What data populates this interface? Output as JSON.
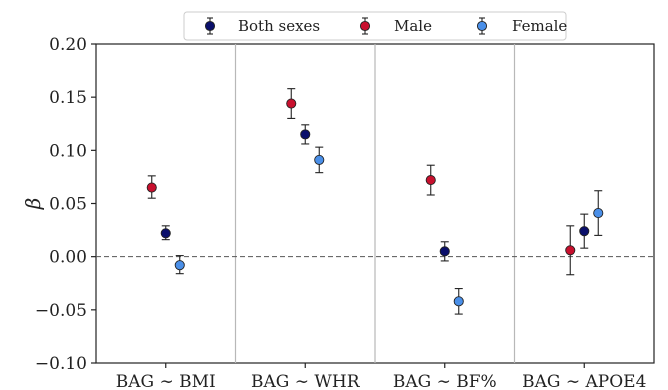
{
  "chart_data": {
    "type": "scatter",
    "title": "",
    "xlabel": "",
    "ylabel": "β",
    "categories": [
      "BAG ∼ BMI",
      "BAG ∼ WHR",
      "BAG ∼ BF%",
      "BAG ∼ APOE4"
    ],
    "ylim": [
      -0.1,
      0.2
    ],
    "yticks": [
      "−0.10",
      "−0.05",
      "0.00",
      "0.05",
      "0.10",
      "0.15",
      "0.20"
    ],
    "ytick_values": [
      -0.1,
      -0.05,
      0.0,
      0.05,
      0.1,
      0.15,
      0.2
    ],
    "reference_line": 0.0,
    "grid": false,
    "category_separators": true,
    "legend_position": "top-center",
    "series": [
      {
        "name": "Both sexes",
        "color": "#0a0f6b",
        "offset": 0,
        "values": [
          0.022,
          0.115,
          0.005,
          0.024
        ],
        "ci_low": [
          0.016,
          0.106,
          -0.004,
          0.008
        ],
        "ci_high": [
          0.029,
          0.124,
          0.014,
          0.04
        ]
      },
      {
        "name": "Male",
        "color": "#c8102e",
        "offset": -1,
        "values": [
          0.065,
          0.144,
          0.072,
          0.006
        ],
        "ci_low": [
          0.055,
          0.13,
          0.058,
          -0.017
        ],
        "ci_high": [
          0.076,
          0.158,
          0.086,
          0.029
        ]
      },
      {
        "name": "Female",
        "color": "#4a8fe8",
        "offset": 1,
        "values": [
          -0.008,
          0.091,
          -0.042,
          0.041
        ],
        "ci_low": [
          -0.016,
          0.079,
          -0.054,
          0.02
        ],
        "ci_high": [
          0.001,
          0.103,
          -0.03,
          0.062
        ]
      }
    ]
  }
}
